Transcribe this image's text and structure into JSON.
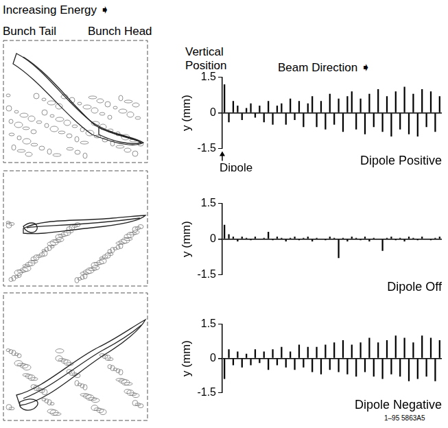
{
  "figure": {
    "energy_label": "Increasing Energy ➧",
    "tail_label": "Bunch Tail",
    "head_label": "Bunch Head",
    "vertical_position_label": "Vertical Position",
    "beam_direction_label": "Beam Direction ➧",
    "figure_id": "1–95 5863A5"
  },
  "chart_data": [
    {
      "type": "bar",
      "title": "Dipole Positive",
      "y_label": "y (mm)",
      "annotations": [
        "Dipole"
      ],
      "ylim": [
        -1.5,
        1.5
      ],
      "yticks": [
        -1.5,
        0,
        1.5
      ],
      "tick_labels": "y",
      "grid": false,
      "color": "#000000",
      "categories": [
        null,
        null,
        null,
        null,
        null,
        null,
        null,
        null,
        null,
        null,
        null,
        null,
        null,
        null,
        null,
        null,
        null,
        null,
        null,
        null,
        null,
        null,
        null,
        null,
        null,
        null,
        null,
        null,
        null,
        null,
        null,
        null,
        null,
        null,
        null,
        null,
        null,
        null,
        null,
        null,
        null,
        null,
        null,
        null,
        null,
        null,
        null,
        null,
        null,
        null
      ],
      "values": [
        1.2,
        -0.4,
        0.5,
        0.3,
        -0.3,
        0.2,
        0.4,
        -0.2,
        0.3,
        -0.4,
        0.5,
        -0.5,
        0.3,
        0.4,
        -0.5,
        0.6,
        -0.3,
        0.5,
        -0.6,
        0.4,
        0.7,
        -0.6,
        0.5,
        -0.7,
        0.8,
        -0.5,
        0.6,
        -0.8,
        0.7,
        0.9,
        -0.7,
        0.6,
        -0.9,
        0.8,
        -0.6,
        1.0,
        -0.8,
        0.7,
        -1.0,
        0.9,
        -0.7,
        1.1,
        -0.9,
        0.8,
        -1.0,
        1.0,
        -0.6,
        0.9,
        -0.8,
        0.7
      ]
    },
    {
      "type": "bar",
      "title": "Dipole Off",
      "y_label": "y (mm)",
      "ylim": [
        -1.5,
        1.5
      ],
      "yticks": [
        -1.5,
        0,
        1.5
      ],
      "tick_labels": "y",
      "grid": false,
      "color": "#000000",
      "categories": [
        null,
        null,
        null,
        null,
        null,
        null,
        null,
        null,
        null,
        null,
        null,
        null,
        null,
        null,
        null,
        null,
        null,
        null,
        null,
        null,
        null,
        null,
        null,
        null,
        null,
        null,
        null,
        null,
        null,
        null,
        null,
        null,
        null,
        null,
        null,
        null,
        null,
        null,
        null,
        null,
        null,
        null,
        null,
        null,
        null,
        null,
        null,
        null,
        null,
        null
      ],
      "values": [
        0.6,
        0.2,
        0.1,
        -0.1,
        0.1,
        0.05,
        -0.05,
        0.1,
        0.0,
        0.05,
        0.3,
        -0.05,
        0.1,
        0.05,
        -0.1,
        0.05,
        0.1,
        -0.05,
        0.05,
        0.1,
        -0.1,
        0.05,
        0.0,
        -0.05,
        0.1,
        0.05,
        -0.8,
        0.05,
        -0.1,
        0.1,
        0.05,
        -0.05,
        0.1,
        -0.1,
        0.05,
        0.0,
        -0.5,
        0.05,
        0.1,
        -0.05,
        0.05,
        -0.1,
        0.1,
        0.05,
        -0.05,
        0.1,
        0.0,
        -0.05,
        0.05,
        0.1
      ]
    },
    {
      "type": "bar",
      "title": "Dipole Negative",
      "y_label": "y (mm)",
      "ylim": [
        -1.5,
        1.5
      ],
      "yticks": [
        -1.5,
        0,
        1.5
      ],
      "tick_labels": "y",
      "grid": false,
      "color": "#000000",
      "categories": [
        null,
        null,
        null,
        null,
        null,
        null,
        null,
        null,
        null,
        null,
        null,
        null,
        null,
        null,
        null,
        null,
        null,
        null,
        null,
        null,
        null,
        null,
        null,
        null,
        null,
        null,
        null,
        null,
        null,
        null,
        null,
        null,
        null,
        null,
        null,
        null,
        null,
        null,
        null,
        null,
        null,
        null,
        null,
        null,
        null,
        null,
        null,
        null,
        null,
        null
      ],
      "values": [
        -0.9,
        0.4,
        -0.3,
        0.3,
        -0.4,
        0.2,
        -0.3,
        0.4,
        -0.2,
        0.3,
        -0.5,
        0.4,
        -0.3,
        0.5,
        -0.4,
        0.3,
        -0.5,
        0.6,
        -0.4,
        0.5,
        -0.6,
        0.5,
        -0.7,
        0.6,
        -0.5,
        0.7,
        -0.6,
        0.8,
        -0.7,
        0.6,
        -0.8,
        0.7,
        -0.6,
        0.9,
        -0.8,
        0.7,
        -0.9,
        0.8,
        -0.7,
        1.0,
        -0.8,
        0.9,
        -1.0,
        0.7,
        -0.9,
        1.0,
        -0.8,
        0.9,
        -1.0,
        0.8
      ]
    }
  ]
}
